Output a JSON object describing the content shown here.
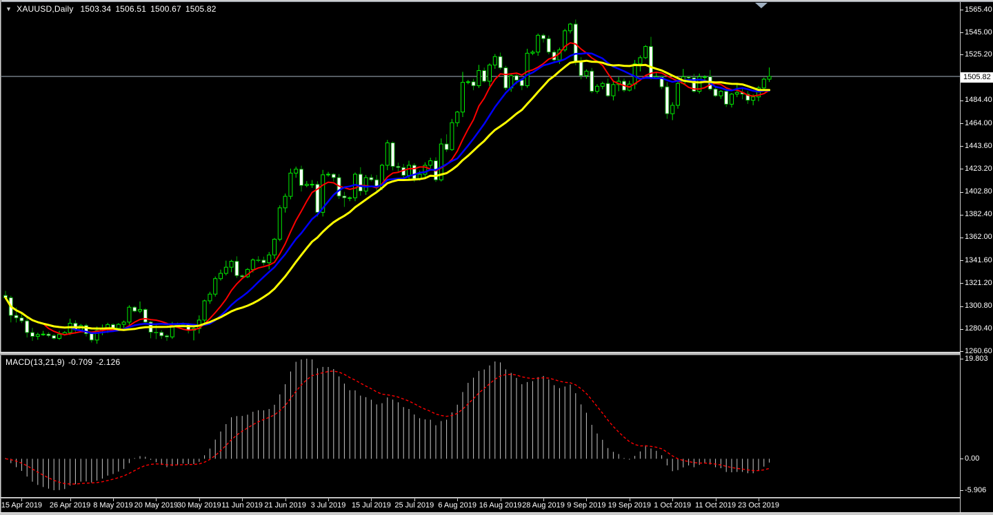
{
  "header": {
    "dropdown_icon": "▼",
    "symbol": "XAUUSD,Daily",
    "open": "1503.34",
    "high": "1506.51",
    "low": "1500.67",
    "close": "1505.82"
  },
  "price_axis": {
    "ticks": [
      "1565.40",
      "1545.00",
      "1525.20",
      "1484.40",
      "1464.00",
      "1443.60",
      "1423.20",
      "1402.80",
      "1382.40",
      "1362.00",
      "1341.60",
      "1321.20",
      "1300.80",
      "1280.40",
      "1260.60"
    ],
    "current_price": "1505.82"
  },
  "macd_panel": {
    "label": "MACD(13,21,9)",
    "value_main": "-0.709",
    "value_signal": "-2.126",
    "ticks": [
      "19.803",
      "0.00",
      "-5.906"
    ]
  },
  "x_axis": {
    "labels": [
      {
        "text": "15 Apr 2019",
        "bar": 3
      },
      {
        "text": "26 Apr 2019",
        "bar": 12
      },
      {
        "text": "8 May 2019",
        "bar": 20
      },
      {
        "text": "20 May 2019",
        "bar": 28
      },
      {
        "text": "30 May 2019",
        "bar": 36
      },
      {
        "text": "11 Jun 2019",
        "bar": 44
      },
      {
        "text": "21 Jun 2019",
        "bar": 52
      },
      {
        "text": "3 Jul 2019",
        "bar": 60
      },
      {
        "text": "15 Jul 2019",
        "bar": 68
      },
      {
        "text": "25 Jul 2019",
        "bar": 76
      },
      {
        "text": "6 Aug 2019",
        "bar": 84
      },
      {
        "text": "16 Aug 2019",
        "bar": 92
      },
      {
        "text": "28 Aug 2019",
        "bar": 100
      },
      {
        "text": "9 Sep 2019",
        "bar": 108
      },
      {
        "text": "19 Sep 2019",
        "bar": 116
      },
      {
        "text": "1 Oct 2019",
        "bar": 124
      },
      {
        "text": "11 Oct 2019",
        "bar": 132
      },
      {
        "text": "23 Oct 2019",
        "bar": 140
      }
    ]
  },
  "colors": {
    "background": "#000000",
    "frame": "#c9c9c9",
    "text": "#ffffff",
    "current_price_line": "#aab6c4",
    "up_candle": "#00ee00",
    "down_candle": "#00a000",
    "down_candle_fill": "#ffffff",
    "ma_fast": "#ff0000",
    "ma_mid": "#0000ff",
    "ma_slow": "#ffff00",
    "macd_histogram": "#c8c8c8",
    "macd_signal": "#ff0000"
  },
  "chart_data": [
    {
      "type": "candlestick",
      "title": "XAUUSD,Daily",
      "ohlc_display": {
        "open": 1503.34,
        "high": 1506.51,
        "low": 1500.67,
        "close": 1505.82
      },
      "current_price": 1505.82,
      "ylim": [
        1259.0,
        1572.0
      ],
      "y_ticks": [
        1565.4,
        1545.0,
        1525.2,
        1484.4,
        1464.0,
        1443.6,
        1423.2,
        1402.8,
        1382.4,
        1362.0,
        1341.6,
        1321.2,
        1300.8,
        1280.4,
        1260.6
      ],
      "close_series": [
        1308.3,
        1292.5,
        1290.3,
        1287.6,
        1277.2,
        1273.8,
        1275.4,
        1275.8,
        1274.5,
        1272.0,
        1275.5,
        1277.2,
        1285.5,
        1279.5,
        1283.5,
        1276.2,
        1270.5,
        1279.0,
        1280.5,
        1284.3,
        1281.0,
        1284.5,
        1286.5,
        1299.8,
        1296.3,
        1297.8,
        1286.5,
        1277.5,
        1277.3,
        1274.3,
        1273.3,
        1283.3,
        1284.8,
        1284.5,
        1279.3,
        1280.8,
        1288.3,
        1305.5,
        1311.5,
        1325.3,
        1330.0,
        1335.5,
        1340.8,
        1328.0,
        1327.0,
        1333.5,
        1342.0,
        1341.8,
        1339.5,
        1346.5,
        1360.5,
        1388.5,
        1398.8,
        1419.5,
        1423.0,
        1408.5,
        1409.5,
        1409.5,
        1384.5,
        1418.0,
        1418.5,
        1415.5,
        1399.0,
        1397.5,
        1397.5,
        1418.5,
        1403.5,
        1415.5,
        1413.5,
        1406.5,
        1426.5,
        1446.5,
        1425.5,
        1424.5,
        1417.5,
        1426.5,
        1414.5,
        1418.5,
        1426.5,
        1430.5,
        1413.5,
        1445.5,
        1440.5,
        1464.5,
        1474.0,
        1500.5,
        1501.0,
        1497.5,
        1511.0,
        1501.5,
        1516.0,
        1523.5,
        1513.5,
        1495.5,
        1506.5,
        1502.5,
        1497.5,
        1526.5,
        1527.5,
        1542.5,
        1539.5,
        1527.5,
        1520.5,
        1529.5,
        1546.5,
        1552.5,
        1519.5,
        1506.5,
        1510.5,
        1492.5,
        1497.0,
        1499.5,
        1488.5,
        1498.5,
        1501.5,
        1493.5,
        1499.0,
        1517.0,
        1522.5,
        1532.5,
        1504.5,
        1505.5,
        1496.5,
        1472.5,
        1480.0,
        1499.5,
        1505.5,
        1504.5,
        1492.5,
        1505.5,
        1505.5,
        1494.5,
        1488.5,
        1492.5,
        1481.0,
        1490.0,
        1491.5,
        1490.0,
        1484.5,
        1487.5,
        1495.5,
        1503.3,
        1505.8
      ],
      "overlays": [
        {
          "name": "sma-fast",
          "period": 8,
          "color": "#ff0000",
          "width": 2
        },
        {
          "name": "sma-mid",
          "period": 13,
          "color": "#0000ff",
          "width": 2.5
        },
        {
          "name": "sma-slow",
          "period": 21,
          "color": "#ffff00",
          "width": 3
        }
      ]
    },
    {
      "type": "bar",
      "name": "MACD",
      "params": [
        13,
        21,
        9
      ],
      "last_main": -0.709,
      "last_signal": -2.126,
      "y_ticks": [
        19.803,
        0.0,
        -5.906
      ],
      "histogram_color": "#c8c8c8",
      "signal_color": "#ff0000"
    }
  ]
}
